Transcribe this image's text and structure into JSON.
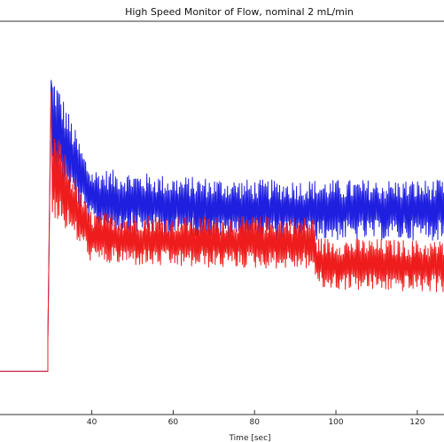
{
  "chart_data": {
    "type": "line",
    "title": "High Speed Monitor of Flow, nominal 2 mL/min",
    "xlabel": "Time [sec]",
    "ylabel": "",
    "xlim": [
      17,
      127
    ],
    "ylim": [
      -0.3,
      4.7
    ],
    "x_ticks": [
      40,
      60,
      80,
      100,
      120
    ],
    "x_tick_labels": [
      "40",
      "60",
      "80",
      "100",
      "120"
    ],
    "grid": false,
    "legend": "none",
    "series": [
      {
        "color": "#1f1fe0",
        "profile": {
          "step_time": 29.2,
          "baseline": 0.25,
          "spike_time": 30.0,
          "spike_value": 3.95,
          "mean_points": [
            [
              31,
              3.35
            ],
            [
              40,
              2.45
            ],
            [
              60,
              2.35
            ],
            [
              80,
              2.3
            ],
            [
              100,
              2.3
            ],
            [
              127,
              2.3
            ]
          ],
          "oscillation_amplitude": 0.35
        }
      },
      {
        "color": "#ee1c1c",
        "profile": {
          "step_time": 29.2,
          "baseline": 0.25,
          "spike_time": 30.0,
          "spike_value": 3.8,
          "mean_points": [
            [
              31,
              2.75
            ],
            [
              40,
              1.95
            ],
            [
              60,
              1.9
            ],
            [
              94.5,
              1.88
            ],
            [
              95.5,
              1.62
            ],
            [
              127,
              1.58
            ]
          ],
          "oscillation_amplitude": 0.3
        }
      }
    ]
  }
}
